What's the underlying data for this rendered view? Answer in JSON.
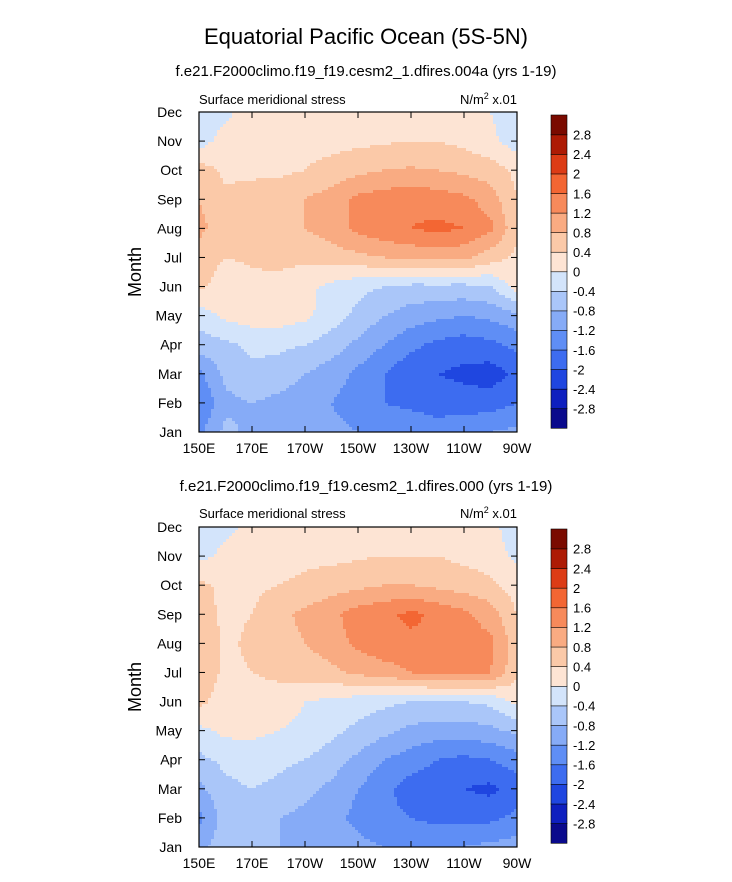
{
  "figure": {
    "title": "Equatorial Pacific Ocean (5S-5N)"
  },
  "colors": {
    "scale": [
      "#0a0a8c",
      "#0e1fbf",
      "#1f46e0",
      "#3d6cf0",
      "#5f8ef5",
      "#86abf7",
      "#aac6f9",
      "#d3e4fb",
      "#fde4d4",
      "#fbc9a8",
      "#f9ab82",
      "#f78a5b",
      "#f36633",
      "#dc3c16",
      "#ad1b05",
      "#7a0a00"
    ]
  },
  "chart_data": [
    {
      "type": "heatmap",
      "subtitle": "f.e21.F2000climo.f19_f19.cesm2_1.dfires.004a (yrs 1-19)",
      "left_label": "Surface meridional stress",
      "right_label": "N/m",
      "right_label_sup": "2",
      "right_label_tail": " x.01",
      "ylabel": "Month",
      "x_ticks": [
        "150E",
        "170E",
        "170W",
        "150W",
        "130W",
        "110W",
        "90W"
      ],
      "y_ticks": [
        "Jan",
        "Feb",
        "Mar",
        "Apr",
        "May",
        "Jun",
        "Jul",
        "Aug",
        "Sep",
        "Oct",
        "Nov",
        "Dec"
      ],
      "levels": [
        "2.8",
        "2.4",
        "2",
        "1.6",
        "1.2",
        "0.8",
        "0.4",
        "0",
        "-0.4",
        "-0.8",
        "-1.2",
        "-1.6",
        "-2",
        "-2.4",
        "-2.8"
      ],
      "x": [
        "150E",
        "160E",
        "170E",
        "180",
        "170W",
        "160W",
        "150W",
        "140W",
        "130W",
        "120W",
        "110W",
        "100W",
        "90W"
      ],
      "y": [
        "Jan",
        "Feb",
        "Mar",
        "Apr",
        "May",
        "Jun",
        "Jul",
        "Aug",
        "Sep",
        "Oct",
        "Nov",
        "Dec"
      ],
      "z": [
        [
          -1.3,
          -0.7,
          -0.9,
          -0.9,
          -1.0,
          -1.1,
          -1.2,
          -1.3,
          -1.3,
          -1.4,
          -1.3,
          -1.2,
          -1.1
        ],
        [
          -1.6,
          -0.9,
          -0.8,
          -0.9,
          -1.0,
          -1.2,
          -1.4,
          -1.6,
          -1.7,
          -1.8,
          -1.8,
          -1.8,
          -1.6
        ],
        [
          -1.3,
          -0.7,
          -0.5,
          -0.6,
          -0.8,
          -1.0,
          -1.3,
          -1.6,
          -1.9,
          -2.0,
          -2.1,
          -2.2,
          -1.9
        ],
        [
          -0.6,
          -0.5,
          -0.3,
          -0.3,
          -0.4,
          -0.6,
          -0.9,
          -1.2,
          -1.5,
          -1.7,
          -1.8,
          -1.7,
          -1.5
        ],
        [
          -0.2,
          0.1,
          0.2,
          0.2,
          0.1,
          -0.2,
          -0.5,
          -0.8,
          -1.0,
          -1.1,
          -1.2,
          -1.1,
          -0.9
        ],
        [
          0.5,
          0.2,
          0.3,
          0.3,
          0.1,
          -0.1,
          -0.3,
          -0.4,
          -0.5,
          -0.5,
          -0.5,
          -0.4,
          0.2
        ],
        [
          0.6,
          0.4,
          0.45,
          0.5,
          0.5,
          0.6,
          0.7,
          0.8,
          0.9,
          0.95,
          0.9,
          0.6,
          0.3
        ],
        [
          0.9,
          0.6,
          0.6,
          0.7,
          0.8,
          1.0,
          1.3,
          1.5,
          1.6,
          1.7,
          1.6,
          1.3,
          0.5
        ],
        [
          0.8,
          0.5,
          0.6,
          0.7,
          0.8,
          1.0,
          1.3,
          1.4,
          1.5,
          1.4,
          1.3,
          1.0,
          0.4
        ],
        [
          0.6,
          0.3,
          0.3,
          0.3,
          0.4,
          0.5,
          0.7,
          0.8,
          0.85,
          0.8,
          0.7,
          0.6,
          0.3
        ],
        [
          -0.2,
          0.2,
          0.2,
          0.2,
          0.3,
          0.3,
          0.3,
          0.35,
          0.4,
          0.4,
          0.3,
          0.1,
          -0.2
        ],
        [
          -0.3,
          -0.1,
          0.2,
          0.2,
          0.25,
          0.3,
          0.3,
          0.35,
          0.3,
          0.3,
          0.25,
          0.0,
          -0.3
        ]
      ]
    },
    {
      "type": "heatmap",
      "subtitle": "f.e21.F2000climo.f19_f19.cesm2_1.dfires.000 (yrs 1-19)",
      "left_label": "Surface meridional stress",
      "right_label": "N/m",
      "right_label_sup": "2",
      "right_label_tail": " x.01",
      "ylabel": "Month",
      "x_ticks": [
        "150E",
        "170E",
        "170W",
        "150W",
        "130W",
        "110W",
        "90W"
      ],
      "y_ticks": [
        "Jan",
        "Feb",
        "Mar",
        "Apr",
        "May",
        "Jun",
        "Jul",
        "Aug",
        "Sep",
        "Oct",
        "Nov",
        "Dec"
      ],
      "levels": [
        "2.8",
        "2.4",
        "2",
        "1.6",
        "1.2",
        "0.8",
        "0.4",
        "0",
        "-0.4",
        "-0.8",
        "-1.2",
        "-1.6",
        "-2",
        "-2.4",
        "-2.8"
      ],
      "x": [
        "150E",
        "160E",
        "170E",
        "180",
        "170W",
        "160W",
        "150W",
        "140W",
        "130W",
        "120W",
        "110W",
        "100W",
        "90W"
      ],
      "y": [
        "Jan",
        "Feb",
        "Mar",
        "Apr",
        "May",
        "Jun",
        "Jul",
        "Aug",
        "Sep",
        "Oct",
        "Nov",
        "Dec"
      ],
      "z": [
        [
          -0.9,
          -0.6,
          -0.7,
          -0.8,
          -0.9,
          -1.0,
          -1.1,
          -1.2,
          -1.3,
          -1.3,
          -1.2,
          -1.1,
          -1.0
        ],
        [
          -1.3,
          -0.6,
          -0.7,
          -0.8,
          -0.9,
          -1.1,
          -1.3,
          -1.5,
          -1.6,
          -1.7,
          -1.7,
          -1.7,
          -1.5
        ],
        [
          -0.9,
          -0.5,
          -0.4,
          -0.5,
          -0.7,
          -0.9,
          -1.2,
          -1.5,
          -1.8,
          -1.9,
          -2.0,
          -2.1,
          -1.8
        ],
        [
          -0.5,
          -0.3,
          -0.2,
          -0.3,
          -0.4,
          -0.6,
          -0.9,
          -1.2,
          -1.4,
          -1.6,
          -1.7,
          -1.6,
          -1.4
        ],
        [
          -0.1,
          0.1,
          0.1,
          0.0,
          -0.1,
          -0.3,
          -0.5,
          -0.7,
          -0.9,
          -1.0,
          -1.0,
          -0.9,
          -0.7
        ],
        [
          0.5,
          0.2,
          0.2,
          0.2,
          0.0,
          -0.1,
          -0.2,
          -0.3,
          -0.4,
          -0.4,
          -0.4,
          -0.3,
          0.1
        ],
        [
          0.7,
          0.3,
          0.4,
          0.5,
          0.6,
          0.7,
          0.9,
          1.0,
          1.2,
          1.3,
          1.3,
          1.2,
          0.5
        ],
        [
          0.8,
          0.3,
          0.5,
          0.6,
          0.8,
          1.0,
          1.3,
          1.5,
          1.5,
          1.5,
          1.4,
          1.3,
          0.6
        ],
        [
          0.6,
          0.3,
          0.4,
          0.7,
          0.9,
          1.1,
          1.4,
          1.5,
          1.7,
          1.5,
          1.3,
          1.0,
          0.4
        ],
        [
          0.5,
          0.3,
          0.3,
          0.4,
          0.5,
          0.6,
          0.7,
          0.8,
          0.8,
          0.7,
          0.6,
          0.5,
          0.2
        ],
        [
          -0.1,
          0.1,
          0.2,
          0.2,
          0.3,
          0.3,
          0.35,
          0.4,
          0.4,
          0.4,
          0.3,
          0.2,
          -0.1
        ],
        [
          -0.3,
          -0.1,
          0.1,
          0.2,
          0.25,
          0.3,
          0.3,
          0.3,
          0.3,
          0.3,
          0.2,
          0.1,
          -0.2
        ]
      ]
    }
  ]
}
